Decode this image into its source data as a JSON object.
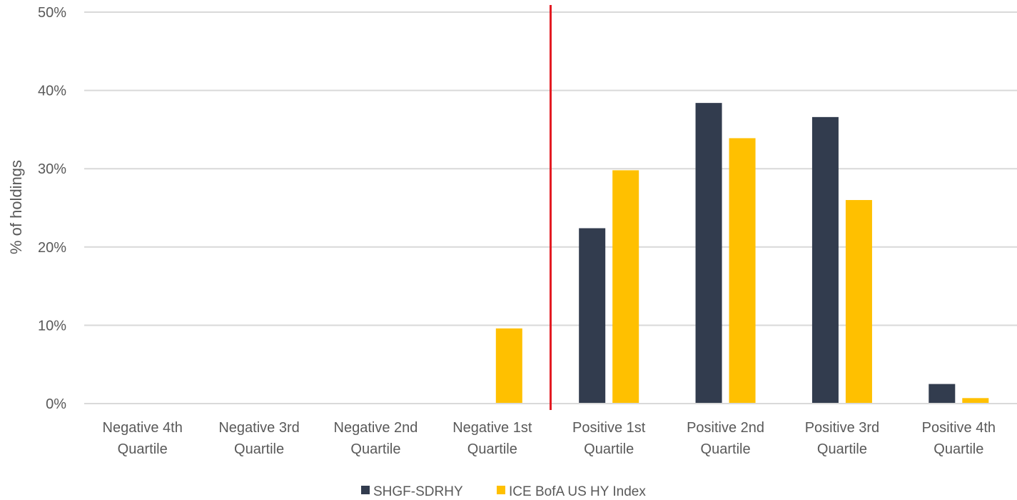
{
  "chart_data": {
    "type": "bar",
    "title": "",
    "xlabel": "",
    "ylabel": "% of holdings",
    "ylim": [
      0,
      50
    ],
    "yticks": [
      0,
      10,
      20,
      30,
      40,
      50
    ],
    "ytick_labels": [
      "0%",
      "10%",
      "20%",
      "30%",
      "40%",
      "50%"
    ],
    "grid": true,
    "legend_position": "bottom",
    "categories": [
      [
        "Negative 4th",
        "Quartile"
      ],
      [
        "Negative 3rd",
        "Quartile"
      ],
      [
        "Negative 2nd",
        "Quartile"
      ],
      [
        "Negative 1st",
        "Quartile"
      ],
      [
        "Positive 1st",
        "Quartile"
      ],
      [
        "Positive 2nd",
        "Quartile"
      ],
      [
        "Positive 3rd",
        "Quartile"
      ],
      [
        "Positive 4th",
        "Quartile"
      ]
    ],
    "series": [
      {
        "name": "SHGF-SDRHY",
        "color": "#323c4e",
        "values": [
          0,
          0,
          0,
          0,
          22.4,
          38.4,
          36.6,
          2.5
        ]
      },
      {
        "name": "ICE BofA US HY Index",
        "color": "#ffc000",
        "values": [
          0,
          0,
          0,
          9.6,
          29.8,
          33.9,
          26.0,
          0.7
        ]
      }
    ],
    "divider": {
      "between_categories": [
        3,
        4
      ],
      "color": "#e31b23"
    },
    "gridline_color": "#d9d9d9"
  }
}
